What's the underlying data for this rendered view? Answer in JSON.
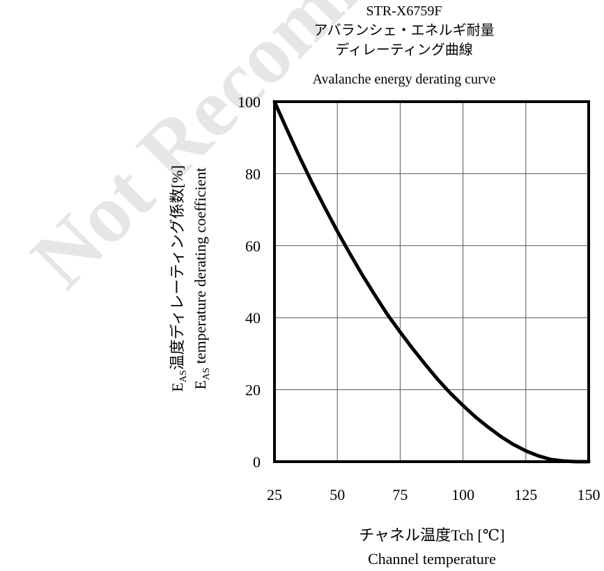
{
  "watermark": "Not Recommended",
  "chart_data": {
    "type": "line",
    "title_lines": [
      "STR-X6759F",
      "アバランシェ・エネルギ耐量",
      "ディレーティング曲線",
      "Avalanche energy derating curve"
    ],
    "xlabel_lines": [
      "チャネル温度Tch [℃]",
      "Channel temperature"
    ],
    "ylabel_lines": [
      {
        "main": "E",
        "sub": "AS",
        "rest": "温度ディレーティング係数[%]"
      },
      {
        "main": "E",
        "sub": "AS",
        "rest": " temperature derating coefficient"
      }
    ],
    "x_ticks": [
      25,
      50,
      75,
      100,
      125,
      150
    ],
    "y_ticks": [
      0,
      20,
      40,
      60,
      80,
      100
    ],
    "xlim": [
      25,
      150
    ],
    "ylim": [
      0,
      100
    ],
    "grid": true,
    "series": [
      {
        "x": [
          25,
          30,
          35,
          40,
          45,
          50,
          55,
          60,
          65,
          70,
          75,
          80,
          85,
          90,
          95,
          100,
          105,
          110,
          115,
          120,
          125,
          130,
          135,
          140,
          145,
          150
        ],
        "y": [
          100,
          92.2,
          84.6,
          77.4,
          70.6,
          64.0,
          57.8,
          51.8,
          46.2,
          40.8,
          36.0,
          31.4,
          27.0,
          22.8,
          19.0,
          15.6,
          12.4,
          9.6,
          7.0,
          4.8,
          3.0,
          1.6,
          0.6,
          0.2,
          0,
          0
        ]
      }
    ]
  }
}
